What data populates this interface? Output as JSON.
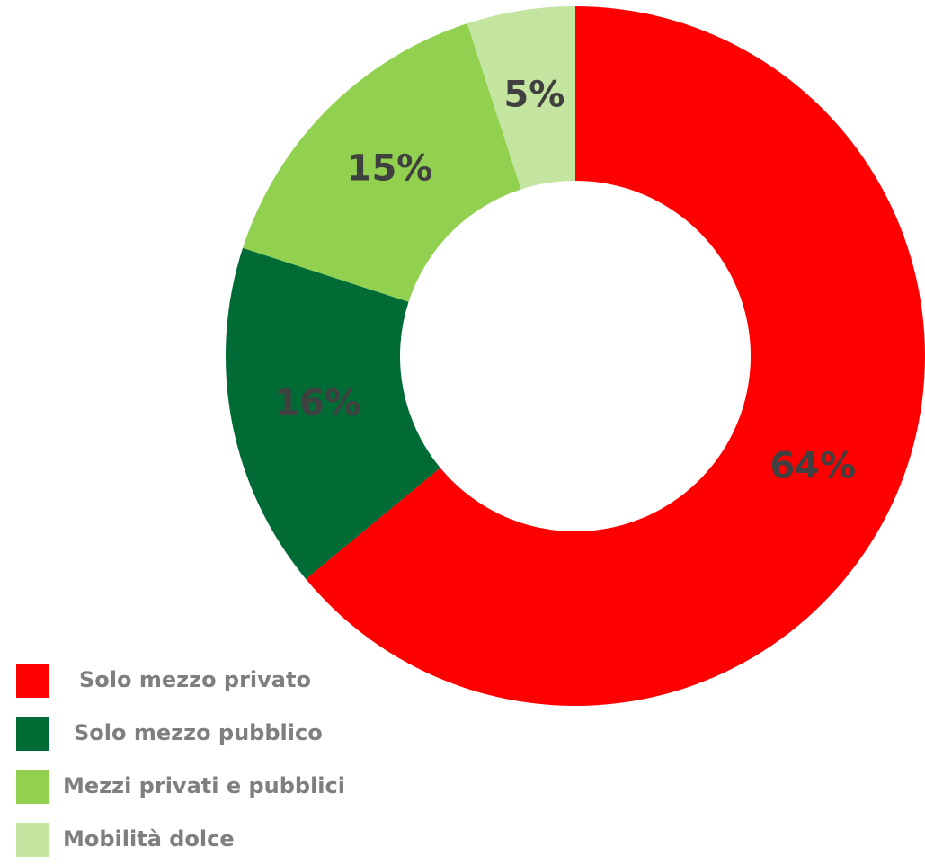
{
  "chart_data": {
    "type": "pie",
    "categories": [
      "Solo mezzo privato",
      "Solo mezzo pubblico",
      "Mezzi privati e pubblici",
      "Mobilità dolce"
    ],
    "values": [
      64,
      16,
      15,
      5
    ],
    "value_labels": [
      "64%",
      "16%",
      "15%",
      "5%"
    ],
    "colors": [
      "#ff0000",
      "#006b35",
      "#92d050",
      "#c4e5a0"
    ]
  }
}
